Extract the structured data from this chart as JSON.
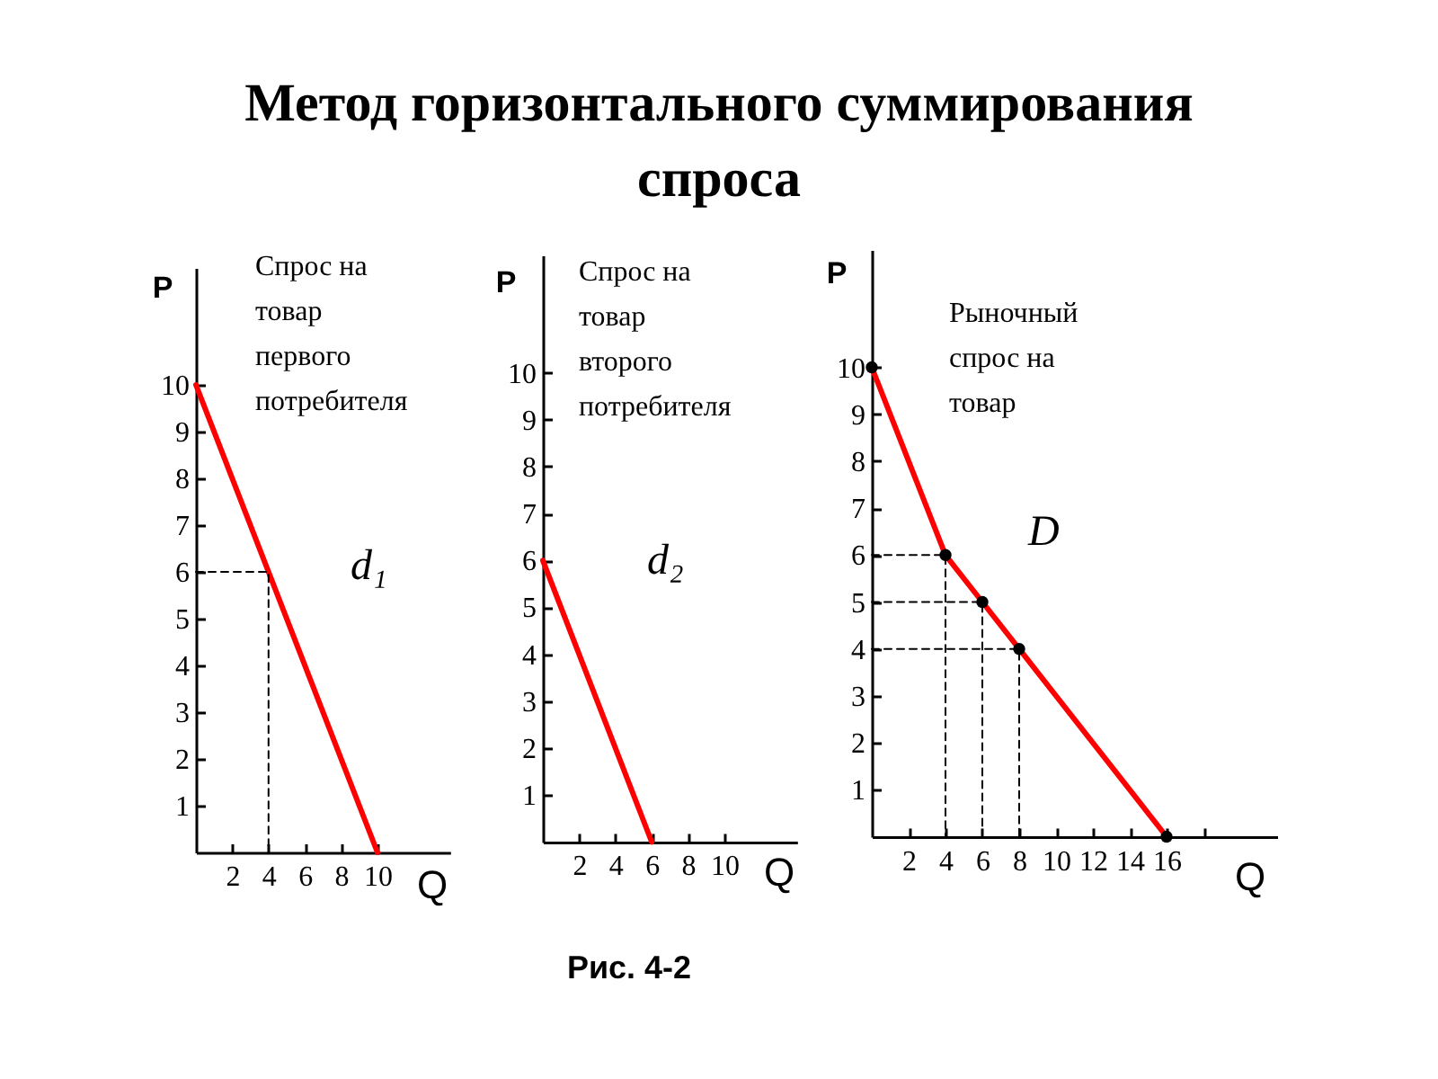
{
  "chart_data": [
    {
      "type": "line",
      "title": "Метод горизонтального суммирования спроса",
      "annotations": [
        "Спрос на товар первого потребителя"
      ],
      "xlabel": "Q",
      "ylabel": "P",
      "xlim": [
        0,
        14
      ],
      "ylim": [
        0,
        12.5
      ],
      "xticks": [
        2,
        4,
        6,
        8,
        10
      ],
      "yticks": [
        1,
        2,
        3,
        4,
        5,
        6,
        7,
        8,
        9,
        10
      ],
      "series": [
        {
          "name": "d₁",
          "color": "#ff0000",
          "x": [
            0,
            10
          ],
          "values": [
            10,
            0
          ]
        },
        {
          "type": "line",
          "color": "#000000",
          "line_style": "dashed",
          "x": [
            0,
            4,
            4
          ],
          "values": [
            6,
            6,
            0
          ]
        }
      ]
    },
    {
      "type": "line",
      "annotations": [
        "Спрос на товар второго потребителя",
        "Рис. 4-2"
      ],
      "xlabel": "Q",
      "ylabel": "P",
      "xlim": [
        0,
        14
      ],
      "ylim": [
        0,
        12.5
      ],
      "xticks": [
        2,
        4,
        6,
        8,
        10
      ],
      "yticks": [
        1,
        2,
        3,
        4,
        5,
        6,
        7,
        8,
        9,
        10
      ],
      "series": [
        {
          "name": "d₂",
          "color": "#ff0000",
          "x": [
            0,
            6
          ],
          "values": [
            6,
            0
          ]
        }
      ]
    },
    {
      "type": "line",
      "annotations": [
        "Рыночный спрос на товар"
      ],
      "xlabel": "Q",
      "ylabel": "P",
      "xlim": [
        0,
        22
      ],
      "ylim": [
        0,
        12.5
      ],
      "xticks": [
        2,
        4,
        6,
        8,
        10,
        12,
        14,
        16,
        {
          "value": 18,
          "label": null
        }
      ],
      "yticks": [
        1,
        2,
        3,
        4,
        5,
        6,
        7,
        8,
        9,
        10
      ],
      "series": [
        {
          "name": "D",
          "color": "#ff0000",
          "x": [
            0,
            4,
            6,
            8,
            16
          ],
          "values": [
            10,
            6,
            5,
            4,
            0
          ]
        },
        {
          "type": "line",
          "color": "#000000",
          "line_style": "dashed",
          "x": [
            0,
            4,
            4
          ],
          "values": [
            6,
            6,
            0
          ]
        },
        {
          "type": "line",
          "color": "#000000",
          "line_style": "dashed",
          "x": [
            0,
            6,
            6
          ],
          "values": [
            5,
            5,
            0
          ]
        },
        {
          "type": "line",
          "color": "#000000",
          "line_style": "dashed",
          "x": [
            0,
            8,
            8
          ],
          "values": [
            4,
            4,
            0
          ]
        },
        {
          "type": "scatter",
          "color": "#000000",
          "marker": "circle",
          "x": [
            0,
            4,
            6,
            8,
            16
          ],
          "values": [
            10,
            6,
            5,
            4,
            0
          ]
        }
      ]
    }
  ]
}
